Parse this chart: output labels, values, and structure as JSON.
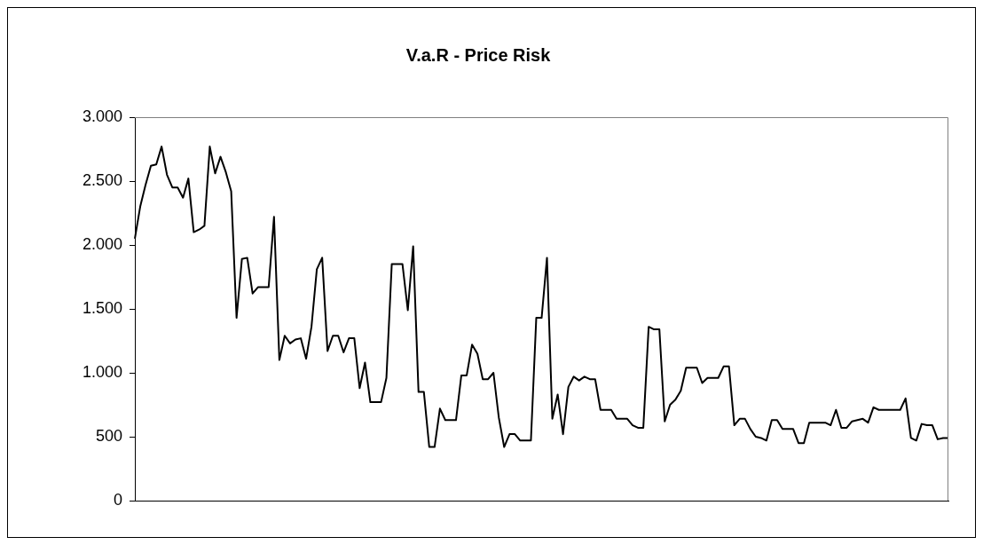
{
  "chart_data": {
    "type": "line",
    "title": "V.a.R - Price Risk",
    "categories": [
      null,
      null,
      null,
      null,
      null,
      null,
      null,
      null,
      null,
      null,
      null,
      null,
      null,
      null,
      null,
      null,
      null,
      null,
      null,
      null,
      null,
      null,
      null,
      null,
      null,
      null,
      null,
      null,
      null,
      null,
      null,
      null,
      null,
      null,
      null,
      null,
      null,
      null,
      null,
      null,
      null,
      null,
      null,
      null,
      null,
      null,
      null,
      null,
      null,
      null,
      null,
      null,
      null,
      null,
      null,
      null,
      null,
      null,
      null,
      null,
      null,
      null,
      null,
      null,
      null,
      null,
      null,
      null,
      null,
      null,
      null,
      null,
      null,
      null,
      null,
      null,
      null,
      null,
      null,
      null,
      null,
      null,
      null,
      null,
      null,
      null,
      null,
      null,
      null,
      null,
      null,
      null,
      null,
      null,
      null,
      null,
      null,
      null,
      null,
      null,
      null,
      null,
      null,
      null,
      null,
      null,
      null,
      null,
      null,
      null,
      null,
      null,
      null,
      null,
      null,
      null,
      null,
      null,
      null,
      null,
      null,
      null,
      null,
      null,
      null,
      null,
      null,
      null,
      null,
      null,
      null,
      null,
      null,
      null,
      null,
      null,
      null,
      null,
      null,
      null,
      null,
      null,
      null,
      null,
      null,
      null,
      null,
      null,
      null,
      null,
      null,
      null,
      null
    ],
    "values": [
      2050,
      2300,
      2470,
      2620,
      2630,
      2770,
      2550,
      2450,
      2450,
      2370,
      2520,
      2100,
      2120,
      2150,
      2770,
      2560,
      2690,
      2570,
      2420,
      1430,
      1890,
      1900,
      1620,
      1670,
      1670,
      1670,
      2220,
      1100,
      1290,
      1230,
      1260,
      1270,
      1110,
      1360,
      1810,
      1900,
      1170,
      1290,
      1290,
      1160,
      1270,
      1270,
      880,
      1080,
      770,
      770,
      770,
      960,
      1850,
      1850,
      1850,
      1490,
      1990,
      850,
      850,
      420,
      420,
      720,
      630,
      630,
      630,
      980,
      980,
      1220,
      1150,
      950,
      950,
      1000,
      650,
      420,
      520,
      520,
      470,
      470,
      470,
      1430,
      1430,
      1900,
      640,
      830,
      520,
      890,
      970,
      940,
      970,
      950,
      950,
      710,
      710,
      710,
      640,
      640,
      640,
      590,
      570,
      570,
      1360,
      1340,
      1340,
      620,
      750,
      790,
      860,
      1040,
      1040,
      1040,
      920,
      960,
      960,
      960,
      1050,
      1050,
      590,
      640,
      640,
      560,
      500,
      490,
      470,
      630,
      630,
      560,
      560,
      560,
      450,
      450,
      610,
      610,
      610,
      610,
      590,
      710,
      570,
      570,
      620,
      630,
      640,
      610,
      730,
      710,
      710,
      710,
      710,
      710,
      800,
      490,
      470,
      600,
      590,
      590,
      480,
      490,
      490
    ],
    "color": "#000000",
    "marker": "none",
    "line_style": "solid",
    "ylim": [
      0,
      3000
    ],
    "yticks": [
      {
        "value": 0,
        "label": "0"
      },
      {
        "value": 500,
        "label": "500"
      },
      {
        "value": 1000,
        "label": "1.000"
      },
      {
        "value": 1500,
        "label": "1.500"
      },
      {
        "value": 2000,
        "label": "2.000"
      },
      {
        "value": 2500,
        "label": "2.500"
      },
      {
        "value": 3000,
        "label": "3.000"
      }
    ],
    "tick_labels": "y"
  }
}
